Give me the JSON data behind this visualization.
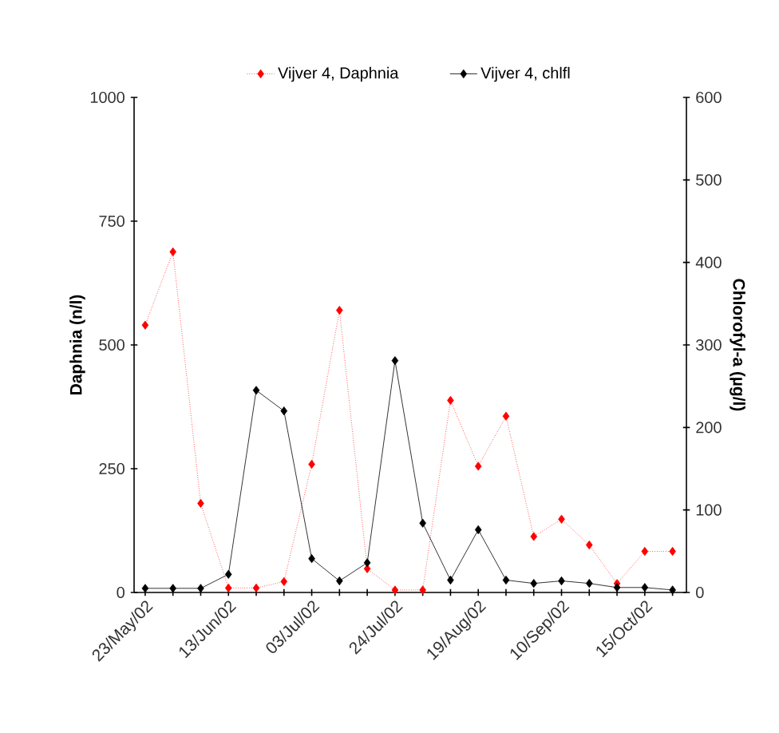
{
  "chart_data": {
    "type": "line",
    "xlabel": null,
    "ylabel": "Daphnia (n/l)",
    "y2label": "Chlorofyl-a (µg/l)",
    "categories": [
      "23/May/02",
      null,
      null,
      "13/Jun/02",
      null,
      null,
      "03/Jul/02",
      null,
      null,
      "24/Jul/02",
      null,
      null,
      "19/Aug/02",
      null,
      null,
      "10/Sep/02",
      null,
      null,
      "15/Oct/02",
      null
    ],
    "series": [
      {
        "name": "Vijver 4, Daphnia",
        "color": "#ff0000",
        "line_style": "dotted",
        "values": [
          540,
          688,
          180,
          9,
          9,
          22,
          259,
          570,
          48,
          5,
          5,
          388,
          255,
          356,
          113,
          148,
          96,
          18,
          83,
          83
        ]
      },
      {
        "name": "Vijver 4, chlfl",
        "color": "#000000",
        "line_style": "solid",
        "axis": "y2",
        "values": [
          5,
          5,
          5,
          22,
          245,
          220,
          41,
          14,
          36,
          281,
          84,
          15,
          76,
          15,
          11,
          14,
          11,
          6,
          6,
          3
        ]
      }
    ],
    "ylim": [
      0,
      1000
    ],
    "yticks": [
      0,
      250,
      500,
      750,
      1000
    ],
    "y2lim": [
      0,
      600
    ],
    "y2ticks": [
      0,
      100,
      200,
      300,
      400,
      500,
      600
    ],
    "marker": "diamond",
    "legend": "top",
    "grid": false
  }
}
